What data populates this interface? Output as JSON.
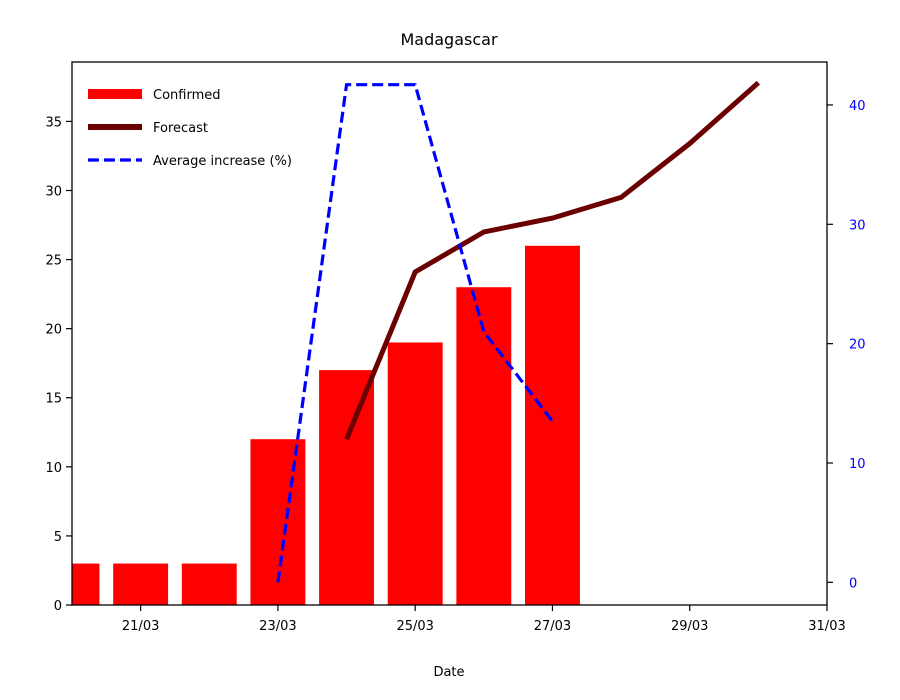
{
  "chart_data": {
    "type": "bar",
    "title": "Madagascar",
    "xlabel": "Date",
    "ylabel": "",
    "ylabel_right": "",
    "x_ticks": [
      "21/03",
      "23/03",
      "25/03",
      "27/03",
      "29/03",
      "31/03"
    ],
    "x_tick_days": [
      21,
      23,
      25,
      27,
      29,
      31
    ],
    "xlim_days": [
      20,
      31
    ],
    "ylim": [
      0,
      39.3
    ],
    "y_ticks": [
      0,
      5,
      10,
      15,
      20,
      25,
      30,
      35
    ],
    "ylim_right": [
      -1.9,
      43.6
    ],
    "y_ticks_right": [
      0,
      10,
      20,
      30,
      40
    ],
    "grid": false,
    "legend_position": "top-left",
    "series": [
      {
        "name": "Confirmed",
        "kind": "bar",
        "axis": "left",
        "color": "#ff0000",
        "x": [
          "20/03",
          "21/03",
          "22/03",
          "23/03",
          "24/03",
          "25/03",
          "26/03",
          "27/03"
        ],
        "x_days": [
          20,
          21,
          22,
          23,
          24,
          25,
          26,
          27
        ],
        "values": [
          3,
          3,
          3,
          12,
          17,
          19,
          23,
          26
        ]
      },
      {
        "name": "Forecast",
        "kind": "line",
        "axis": "left",
        "color": "#6b0000",
        "x": [
          "24/03",
          "25/03",
          "26/03",
          "27/03",
          "28/03",
          "29/03",
          "30/03"
        ],
        "x_days": [
          24,
          25,
          26,
          27,
          28,
          29,
          30
        ],
        "values": [
          12,
          24.1,
          27,
          28,
          29.5,
          33.4,
          37.8
        ]
      },
      {
        "name": "Average increase (%)",
        "kind": "dashed-line",
        "axis": "right",
        "color": "#0000ff",
        "x": [
          "23/03",
          "24/03",
          "25/03",
          "26/03",
          "27/03"
        ],
        "x_days": [
          23,
          24,
          25,
          26,
          27
        ],
        "values": [
          0,
          41.7,
          41.7,
          21,
          13.5
        ]
      }
    ]
  }
}
